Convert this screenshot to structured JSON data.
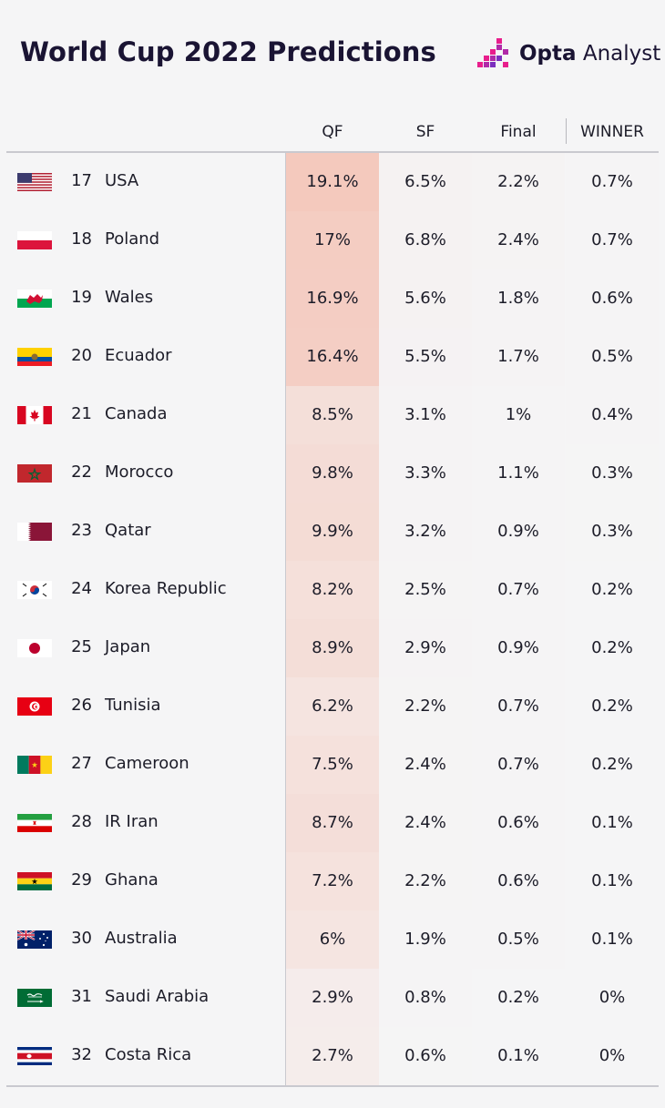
{
  "header": {
    "title": "World Cup 2022 Predictions",
    "brand_bold": "Opta",
    "brand_light": "Analyst"
  },
  "colors": {
    "heat_max": "#f4c9bd",
    "background": "#f5f5f6",
    "title": "#1a1433",
    "brand_pink": "#e81e8c",
    "brand_purple": "#7b2fbe"
  },
  "chart_data": {
    "type": "table",
    "title": "World Cup 2022 Predictions",
    "columns": [
      "QF",
      "SF",
      "Final",
      "WINNER"
    ],
    "rows": [
      {
        "rank": "17",
        "team": "USA",
        "flag": "usa-flag-icon",
        "values": [
          "19.1%",
          "6.5%",
          "2.2%",
          "0.7%"
        ]
      },
      {
        "rank": "18",
        "team": "Poland",
        "flag": "poland-flag-icon",
        "values": [
          "17%",
          "6.8%",
          "2.4%",
          "0.7%"
        ]
      },
      {
        "rank": "19",
        "team": "Wales",
        "flag": "wales-flag-icon",
        "values": [
          "16.9%",
          "5.6%",
          "1.8%",
          "0.6%"
        ]
      },
      {
        "rank": "20",
        "team": "Ecuador",
        "flag": "ecuador-flag-icon",
        "values": [
          "16.4%",
          "5.5%",
          "1.7%",
          "0.5%"
        ]
      },
      {
        "rank": "21",
        "team": "Canada",
        "flag": "canada-flag-icon",
        "values": [
          "8.5%",
          "3.1%",
          "1%",
          "0.4%"
        ]
      },
      {
        "rank": "22",
        "team": "Morocco",
        "flag": "morocco-flag-icon",
        "values": [
          "9.8%",
          "3.3%",
          "1.1%",
          "0.3%"
        ]
      },
      {
        "rank": "23",
        "team": "Qatar",
        "flag": "qatar-flag-icon",
        "values": [
          "9.9%",
          "3.2%",
          "0.9%",
          "0.3%"
        ]
      },
      {
        "rank": "24",
        "team": "Korea Republic",
        "flag": "korea-flag-icon",
        "values": [
          "8.2%",
          "2.5%",
          "0.7%",
          "0.2%"
        ]
      },
      {
        "rank": "25",
        "team": "Japan",
        "flag": "japan-flag-icon",
        "values": [
          "8.9%",
          "2.9%",
          "0.9%",
          "0.2%"
        ]
      },
      {
        "rank": "26",
        "team": "Tunisia",
        "flag": "tunisia-flag-icon",
        "values": [
          "6.2%",
          "2.2%",
          "0.7%",
          "0.2%"
        ]
      },
      {
        "rank": "27",
        "team": "Cameroon",
        "flag": "cameroon-flag-icon",
        "values": [
          "7.5%",
          "2.4%",
          "0.7%",
          "0.2%"
        ]
      },
      {
        "rank": "28",
        "team": "IR Iran",
        "flag": "iran-flag-icon",
        "values": [
          "8.7%",
          "2.4%",
          "0.6%",
          "0.1%"
        ]
      },
      {
        "rank": "29",
        "team": "Ghana",
        "flag": "ghana-flag-icon",
        "values": [
          "7.2%",
          "2.2%",
          "0.6%",
          "0.1%"
        ]
      },
      {
        "rank": "30",
        "team": "Australia",
        "flag": "australia-flag-icon",
        "values": [
          "6%",
          "1.9%",
          "0.5%",
          "0.1%"
        ]
      },
      {
        "rank": "31",
        "team": "Saudi Arabia",
        "flag": "saudi-arabia-flag-icon",
        "values": [
          "2.9%",
          "0.8%",
          "0.2%",
          "0%"
        ]
      },
      {
        "rank": "32",
        "team": "Costa Rica",
        "flag": "costa-rica-flag-icon",
        "values": [
          "2.7%",
          "0.6%",
          "0.1%",
          "0%"
        ]
      }
    ]
  }
}
